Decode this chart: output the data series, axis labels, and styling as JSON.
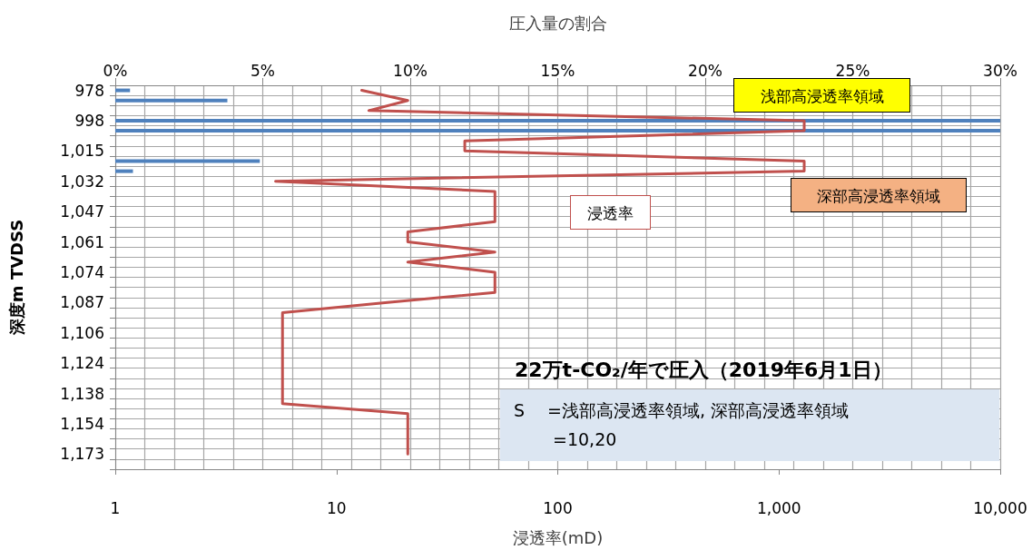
{
  "chart_data": {
    "type": "bar",
    "orientation": "horizontal",
    "categories": [
      "978",
      null,
      null,
      "998",
      null,
      null,
      "1,015",
      null,
      null,
      "1,032",
      null,
      null,
      "1,047",
      null,
      null,
      "1,061",
      null,
      null,
      "1,074",
      null,
      null,
      "1,087",
      null,
      null,
      "1,106",
      null,
      null,
      "1,124",
      null,
      null,
      "1,138",
      null,
      null,
      "1,154",
      null,
      null,
      "1,173",
      null
    ],
    "ylabel": "深度m TVDSS",
    "xlabel": "浸透率(mD)",
    "x2label": "圧入量の割合",
    "series": [
      {
        "axis": "x2",
        "color": "#4f81bd",
        "values": [
          0.5,
          3.8,
          null,
          30,
          30,
          null,
          null,
          4.9,
          0.6,
          null,
          null,
          null,
          null,
          null,
          null,
          null,
          null,
          null,
          null,
          null,
          null,
          null,
          null,
          null,
          null,
          null,
          null,
          null,
          null,
          null,
          null,
          null,
          null,
          null,
          null,
          null,
          null,
          null
        ]
      },
      {
        "type": "line",
        "name": "浸透率",
        "color": "#c0504d",
        "marker": "none",
        "line_style": "solid",
        "values": [
          13,
          21,
          14,
          1300,
          1300,
          38,
          38,
          1300,
          1300,
          5.3,
          52,
          52,
          52,
          52,
          21,
          21,
          52,
          21,
          52,
          52,
          52,
          17,
          5.7,
          5.7,
          5.7,
          5.7,
          5.7,
          5.7,
          5.7,
          5.7,
          5.7,
          5.7,
          21,
          21,
          21,
          21,
          21,
          null
        ]
      }
    ],
    "log": "x",
    "xlim": [
      1,
      10000
    ],
    "xticks": [
      1,
      10,
      100,
      {
        "value": 1000,
        "label": "1,000"
      },
      {
        "value": 10000,
        "label": "10,000"
      }
    ],
    "x2lim": [
      0,
      30
    ],
    "x2ticks": [
      {
        "value": 0,
        "label": "0%"
      },
      {
        "value": 5,
        "label": "5%"
      },
      {
        "value": 10,
        "label": "10%"
      },
      {
        "value": 15,
        "label": "15%"
      },
      {
        "value": 20,
        "label": "20%"
      },
      {
        "value": 25,
        "label": "25%"
      },
      {
        "value": 30,
        "label": "30%"
      }
    ],
    "grid": true,
    "annotations": [
      "浅部高浸透率領域",
      "深部高浸透率領域",
      "22万t-CO₂/年で圧入（2019年6月1日）",
      "S　 =浅部高浸透率領域, 深部高浸透率領域",
      "=10,20"
    ]
  }
}
